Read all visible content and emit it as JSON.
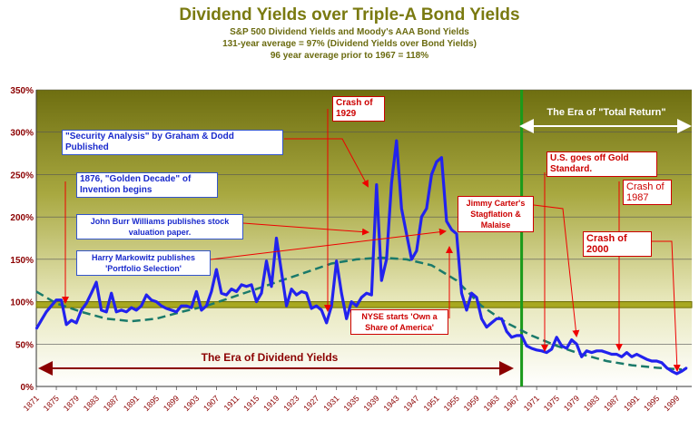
{
  "title": "Dividend Yields over Triple-A  Bond Yields",
  "subtitle1": "S&P 500 Dividend Yields and Moody's AAA Bond Yields",
  "subtitle2": "131-year average = 97% (Dividend Yields over Bond Yields)",
  "subtitle3": "96 year average prior to 1967 = 118%",
  "colors": {
    "line": "#2222ee",
    "trend": "#1a7a6a",
    "avg_band": "#a8a820",
    "divider": "#1a9a1a",
    "dividend_era_arrow": "#8b0000",
    "annotation_text_blue": "#1a2acc",
    "annotation_text_red": "#cc0000"
  },
  "chart_data": {
    "type": "line",
    "ylim": [
      0,
      350
    ],
    "xlim": [
      1871,
      2002
    ],
    "y_ticks": [
      "0%",
      "50%",
      "100%",
      "150%",
      "200%",
      "250%",
      "300%",
      "350%"
    ],
    "x_ticks": [
      "1871",
      "1875",
      "1879",
      "1883",
      "1887",
      "1891",
      "1895",
      "1899",
      "1903",
      "1907",
      "1911",
      "1915",
      "1919",
      "1923",
      "1927",
      "1931",
      "1935",
      "1939",
      "1943",
      "1947",
      "1951",
      "1955",
      "1959",
      "1963",
      "1967",
      "1971",
      "1975",
      "1979",
      "1983",
      "1987",
      "1991",
      "1995",
      "1999"
    ],
    "series": [
      {
        "x": [
          1871,
          1872,
          1873,
          1874,
          1875,
          1876,
          1877,
          1878,
          1879,
          1880,
          1881,
          1882,
          1883,
          1884,
          1885,
          1886,
          1887,
          1888,
          1889,
          1890,
          1891,
          1892,
          1893,
          1894,
          1895,
          1896,
          1897,
          1898,
          1899,
          1900,
          1901,
          1902,
          1903,
          1904,
          1905,
          1906,
          1907,
          1908,
          1909,
          1910,
          1911,
          1912,
          1913,
          1914,
          1915,
          1916,
          1917,
          1918,
          1919,
          1920,
          1921,
          1922,
          1923,
          1924,
          1925,
          1926,
          1927,
          1928,
          1929,
          1930,
          1931,
          1932,
          1933,
          1934,
          1935,
          1936,
          1937,
          1938,
          1939,
          1940,
          1941,
          1942,
          1943,
          1944,
          1945,
          1946,
          1947,
          1948,
          1949,
          1950,
          1951,
          1952,
          1953,
          1954,
          1955,
          1956,
          1957,
          1958,
          1959,
          1960,
          1961,
          1962,
          1963,
          1964,
          1965,
          1966,
          1967,
          1968,
          1969,
          1970,
          1971,
          1972,
          1973,
          1974,
          1975,
          1976,
          1977,
          1978,
          1979,
          1980,
          1981,
          1982,
          1983,
          1984,
          1985,
          1986,
          1987,
          1988,
          1989,
          1990,
          1991,
          1992,
          1993,
          1994,
          1995,
          1996,
          1997,
          1998,
          1999,
          2000,
          2001
        ],
        "values": [
          68,
          78,
          88,
          95,
          102,
          102,
          73,
          78,
          75,
          90,
          98,
          110,
          123,
          90,
          88,
          110,
          88,
          90,
          88,
          93,
          90,
          95,
          108,
          102,
          100,
          95,
          92,
          90,
          88,
          95,
          95,
          93,
          112,
          90,
          95,
          112,
          138,
          110,
          108,
          115,
          112,
          120,
          118,
          120,
          100,
          110,
          148,
          118,
          175,
          135,
          95,
          115,
          108,
          112,
          110,
          92,
          95,
          90,
          75,
          95,
          148,
          110,
          80,
          100,
          95,
          105,
          110,
          108,
          238,
          125,
          150,
          240,
          290,
          210,
          180,
          150,
          160,
          200,
          210,
          250,
          265,
          270,
          195,
          185,
          180,
          110,
          90,
          110,
          105,
          80,
          70,
          75,
          80,
          80,
          65,
          58,
          60,
          60,
          48,
          45,
          43,
          42,
          40,
          44,
          58,
          48,
          45,
          55,
          50,
          35,
          42,
          40,
          42,
          42,
          40,
          38,
          38,
          35,
          40,
          35,
          38,
          35,
          32,
          30,
          30,
          28,
          22,
          18,
          15,
          18,
          22
        ]
      },
      {
        "x": [
          1871,
          1875,
          1880,
          1885,
          1890,
          1895,
          1900,
          1905,
          1910,
          1915,
          1920,
          1925,
          1930,
          1935,
          1940,
          1945,
          1950,
          1955,
          1960,
          1965,
          1970,
          1975,
          1980,
          1985,
          1990,
          1995,
          2000
        ],
        "values": [
          112,
          98,
          88,
          80,
          77,
          80,
          88,
          95,
          105,
          115,
          125,
          135,
          145,
          150,
          152,
          150,
          143,
          125,
          95,
          75,
          60,
          48,
          38,
          30,
          25,
          22,
          20
        ]
      }
    ],
    "annotations": [
      {
        "label": "Crash of 1929",
        "year": 1929
      },
      {
        "label": "\"Security Analysis\" by Graham & Dodd Published",
        "year": 1934
      },
      {
        "label": "1876, \"Golden Decade\" of Invention begins",
        "year": 1876
      },
      {
        "label": "John Burr Williams publishes stock valuation paper.",
        "year": 1938
      },
      {
        "label": "Harry Markowitz publishes 'Portfolio Selection'",
        "year": 1952
      },
      {
        "label": "NYSE starts 'Own a Share of America'",
        "year": 1954
      },
      {
        "label": "Jimmy Carter's Stagflation & Malaise",
        "year": 1977
      },
      {
        "label": "U.S. goes off Gold Standard.",
        "year": 1971
      },
      {
        "label": "Crash of 1987",
        "year": 1987
      },
      {
        "label": "Crash of 2000",
        "year": 2000
      }
    ],
    "eras": {
      "dividend": "The Era of Dividend Yields",
      "total_return": "The Era of \"Total Return\""
    },
    "grid": true
  },
  "annotations": {
    "crash1929": "Crash of 1929",
    "security_analysis": "\"Security Analysis\" by Graham & Dodd Published",
    "golden_decade": "1876, \"Golden Decade\" of Invention begins",
    "burr_williams": "John Burr Williams publishes stock valuation paper.",
    "markowitz": "Harry Markowitz publishes 'Portfolio Selection'",
    "nyse": "NYSE starts 'Own a Share of America'",
    "carter": "Jimmy Carter's Stagflation & Malaise",
    "gold": "U.S. goes off Gold Standard.",
    "crash1987": "Crash of 1987",
    "crash2000": "Crash of 2000",
    "era_dividend": "The Era of Dividend Yields",
    "era_total_return": "The Era of \"Total Return\""
  }
}
